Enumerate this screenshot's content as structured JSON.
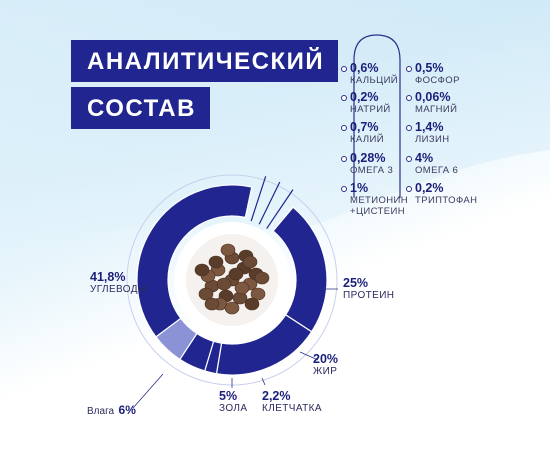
{
  "title": {
    "line1": "АНАЛИТИЧЕСКИЙ",
    "line2": "СОСТАВ"
  },
  "colors": {
    "navy": "#20258f",
    "light_blue": "#8b92d6",
    "pale": "#dfe3f7",
    "bracket": "#2a2f8c"
  },
  "nutrients_left": [
    {
      "value": "0,6%",
      "label": "КАЛЬЦИЙ"
    },
    {
      "value": "0,2%",
      "label": "НАТРИЙ"
    },
    {
      "value": "0,7%",
      "label": "КАЛИЙ"
    },
    {
      "value": "0,28%",
      "label": "ОМЕГА 3"
    },
    {
      "value": "1%",
      "label": "МЕТИОНИН",
      "label2": "+ЦИСТЕИН"
    }
  ],
  "nutrients_right": [
    {
      "value": "0,5%",
      "label": "ФОСФОР"
    },
    {
      "value": "0,06%",
      "label": "МАГНИЙ"
    },
    {
      "value": "1,4%",
      "label": "ЛИЗИН"
    },
    {
      "value": "4%",
      "label": "ОМЕГА 6"
    },
    {
      "value": "0,2%",
      "label": "ТРИПТОФАН"
    }
  ],
  "chart_data": {
    "type": "pie",
    "categories": [
      "ПРОТЕИН",
      "ЖИР",
      "КЛЕТЧАТКА",
      "ЗОЛА",
      "Влага",
      "УГЛЕВОДЫ"
    ],
    "values": [
      25,
      20,
      2.2,
      5,
      6,
      41.8
    ],
    "labels": {
      "protein": {
        "value": "25%",
        "label": "ПРОТЕИН"
      },
      "fat": {
        "value": "20%",
        "label": "ЖИР"
      },
      "fiber": {
        "value": "2,2%",
        "label": "КЛЕТЧАТКА"
      },
      "ash": {
        "value": "5%",
        "label": "ЗОЛА"
      },
      "moisture": {
        "label": "Влага",
        "value": "6%"
      },
      "carbs": {
        "value": "41,8%",
        "label": "УГЛЕВОДЫ"
      }
    }
  }
}
